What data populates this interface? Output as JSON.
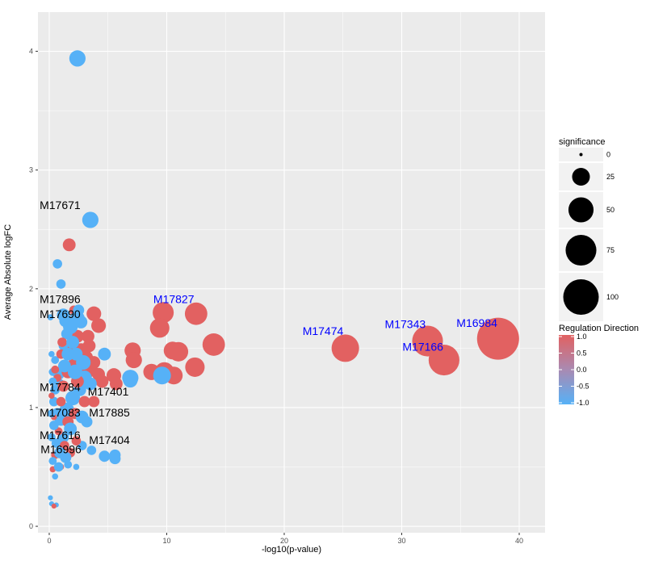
{
  "chart_data": {
    "type": "scatter",
    "title": "",
    "xlabel": "-log10(p-value)",
    "ylabel": "Average Absolute logFC",
    "xlim": [
      -0.96,
      42.2
    ],
    "ylim": [
      -0.054,
      4.33
    ],
    "x_ticks": [
      0,
      10,
      20,
      30,
      40
    ],
    "y_ticks": [
      0,
      1,
      2,
      3,
      4
    ],
    "grid": true,
    "colors": {
      "up": "#E26161",
      "down": "#56B1F7",
      "panel": "#EBEBEB",
      "grid": "#FFFFFF",
      "legend_key": "#F2F2F2"
    },
    "point_fields": [
      "x",
      "y",
      "significance",
      "direction"
    ],
    "points": [
      [
        0.2,
        1.45,
        3,
        -1
      ],
      [
        0.5,
        1.4,
        5,
        -1
      ],
      [
        0.3,
        1.3,
        5,
        -1
      ],
      [
        0.8,
        1.28,
        10,
        -1
      ],
      [
        1.2,
        1.78,
        13,
        -1
      ],
      [
        1.4,
        1.73,
        13,
        -1
      ],
      [
        2.1,
        1.82,
        7,
        1
      ],
      [
        2.4,
        1.6,
        13,
        1
      ],
      [
        1.8,
        1.5,
        13,
        1
      ],
      [
        1.8,
        1.68,
        17,
        -1
      ],
      [
        2.4,
        1.75,
        17,
        -1
      ],
      [
        2.7,
        1.72,
        13,
        -1
      ],
      [
        2.5,
        1.82,
        10,
        -1
      ],
      [
        1.5,
        1.62,
        10,
        -1
      ],
      [
        1.2,
        1.52,
        7,
        -1
      ],
      [
        2.7,
        1.48,
        17,
        1
      ],
      [
        3.1,
        1.42,
        17,
        1
      ],
      [
        2.2,
        1.38,
        13,
        1
      ],
      [
        1.0,
        1.45,
        7,
        1
      ],
      [
        1.6,
        1.45,
        13,
        -1
      ],
      [
        2.3,
        1.45,
        13,
        -1
      ],
      [
        0.9,
        1.2,
        7,
        -1
      ],
      [
        0.5,
        1.15,
        7,
        -1
      ],
      [
        0.4,
        1.05,
        7,
        -1
      ],
      [
        1.6,
        1.3,
        13,
        1
      ],
      [
        2.6,
        1.3,
        17,
        1
      ],
      [
        3.5,
        1.32,
        17,
        1
      ],
      [
        4.2,
        1.28,
        13,
        1
      ],
      [
        3.8,
        1.38,
        13,
        1
      ],
      [
        4.5,
        1.22,
        13,
        1
      ],
      [
        0.7,
        0.95,
        10,
        -1
      ],
      [
        1.0,
        0.9,
        13,
        -1
      ],
      [
        1.5,
        0.98,
        17,
        -1
      ],
      [
        2.0,
        1.08,
        17,
        -1
      ],
      [
        2.6,
        1.15,
        13,
        -1
      ],
      [
        3.0,
        1.25,
        17,
        -1
      ],
      [
        1.2,
        1.18,
        10,
        1
      ],
      [
        2.4,
        1.22,
        13,
        1
      ],
      [
        1.0,
        1.05,
        7,
        1
      ],
      [
        1.6,
        0.88,
        10,
        1
      ],
      [
        2.2,
        0.95,
        10,
        1
      ],
      [
        3.5,
        1.2,
        13,
        -1
      ],
      [
        2.8,
        0.92,
        13,
        -1
      ],
      [
        3.2,
        0.88,
        10,
        -1
      ],
      [
        1.8,
        0.82,
        13,
        -1
      ],
      [
        1.2,
        0.75,
        10,
        -1
      ],
      [
        0.6,
        0.7,
        7,
        -1
      ],
      [
        0.8,
        0.8,
        5,
        1
      ],
      [
        1.3,
        0.68,
        7,
        1
      ],
      [
        1.8,
        0.62,
        7,
        1
      ],
      [
        0.5,
        0.6,
        5,
        1
      ],
      [
        0.3,
        0.48,
        3,
        1
      ],
      [
        1.0,
        0.5,
        3,
        1
      ],
      [
        0.9,
        0.62,
        10,
        -1
      ],
      [
        1.4,
        0.58,
        10,
        -1
      ],
      [
        0.3,
        0.55,
        5,
        -1
      ],
      [
        0.8,
        0.5,
        7,
        -1
      ],
      [
        1.6,
        0.52,
        5,
        -1
      ],
      [
        2.3,
        0.5,
        3,
        -1
      ],
      [
        0.5,
        0.42,
        3,
        -1
      ],
      [
        2.8,
        0.68,
        7,
        -1
      ],
      [
        2.2,
        1.3,
        17,
        -1
      ],
      [
        1.3,
        1.35,
        13,
        -1
      ],
      [
        0.4,
        0.85,
        7,
        -1
      ],
      [
        0.2,
        0.75,
        5,
        -1
      ],
      [
        0.7,
        1.25,
        5,
        1
      ],
      [
        0.5,
        1.32,
        5,
        1
      ],
      [
        3.0,
        1.05,
        10,
        1
      ],
      [
        2.3,
        0.72,
        7,
        1
      ],
      [
        1.1,
        1.55,
        7,
        1
      ],
      [
        3.4,
        1.52,
        13,
        1
      ],
      [
        0.2,
        1.1,
        3,
        1
      ],
      [
        0.4,
        0.92,
        3,
        1
      ],
      [
        0.2,
        0.95,
        5,
        -1
      ],
      [
        0.3,
        1.22,
        5,
        -1
      ],
      [
        2.0,
        1.55,
        13,
        -1
      ],
      [
        2.9,
        1.38,
        17,
        -1
      ],
      [
        4.2,
        1.69,
        17,
        1
      ],
      [
        3.8,
        1.79,
        17,
        1
      ],
      [
        3.8,
        1.05,
        10,
        1
      ],
      [
        3.3,
        1.6,
        13,
        1
      ],
      [
        4.7,
        1.45,
        13,
        -1
      ],
      [
        4.7,
        0.59,
        10,
        -1
      ],
      [
        5.6,
        0.6,
        10,
        -1
      ],
      [
        5.6,
        0.57,
        10,
        -1
      ],
      [
        3.6,
        0.64,
        7,
        -1
      ],
      [
        0.1,
        0.24,
        2,
        -1
      ],
      [
        0.2,
        0.19,
        2,
        -1
      ],
      [
        0.6,
        0.18,
        2,
        -1
      ],
      [
        0.4,
        0.17,
        2,
        1
      ],
      [
        2.4,
        3.94,
        21,
        -1
      ],
      [
        3.5,
        2.58,
        21,
        -1
      ],
      [
        1.7,
        2.37,
        13,
        1
      ],
      [
        0.7,
        2.21,
        7,
        -1
      ],
      [
        1.0,
        2.04,
        7,
        -1
      ],
      [
        0.1,
        1.76,
        3,
        -1
      ],
      [
        9.7,
        1.8,
        35,
        1
      ],
      [
        12.5,
        1.79,
        40,
        1
      ],
      [
        9.4,
        1.67,
        30,
        1
      ],
      [
        14.0,
        1.53,
        40,
        1
      ],
      [
        7.1,
        1.48,
        21,
        1
      ],
      [
        10.5,
        1.48,
        25,
        1
      ],
      [
        11.0,
        1.47,
        30,
        1
      ],
      [
        7.2,
        1.4,
        21,
        1
      ],
      [
        12.4,
        1.34,
        30,
        1
      ],
      [
        9.8,
        1.3,
        30,
        1
      ],
      [
        8.7,
        1.3,
        21,
        1
      ],
      [
        10.6,
        1.27,
        25,
        1
      ],
      [
        5.7,
        1.2,
        13,
        1
      ],
      [
        5.5,
        1.27,
        17,
        1
      ],
      [
        9.6,
        1.27,
        25,
        -1
      ],
      [
        6.9,
        1.25,
        21,
        -1
      ],
      [
        6.9,
        1.23,
        17,
        -1
      ],
      [
        25.2,
        1.5,
        60,
        1
      ],
      [
        32.2,
        1.56,
        75,
        1
      ],
      [
        33.6,
        1.4,
        75,
        1
      ],
      [
        38.2,
        1.58,
        140,
        1
      ]
    ],
    "labels": [
      {
        "text": "M17671",
        "x": 0.7,
        "y": 2.67,
        "color": "#000000"
      },
      {
        "text": "M17896",
        "x": 0.2,
        "y": 1.88,
        "color": "#000000"
      },
      {
        "text": "M17690",
        "x": 0.0,
        "y": 1.87,
        "color": "#000000"
      },
      {
        "text": "M17827",
        "x": 10.6,
        "y": 1.88,
        "color": "#0000FF"
      },
      {
        "text": "M17474",
        "x": 23.3,
        "y": 1.61,
        "color": "#0000FF"
      },
      {
        "text": "M17343",
        "x": 30.3,
        "y": 1.67,
        "color": "#0000FF"
      },
      {
        "text": "M17166",
        "x": 31.8,
        "y": 1.48,
        "color": "#0000FF"
      },
      {
        "text": "M16984",
        "x": 36.4,
        "y": 1.68,
        "color": "#0000FF"
      },
      {
        "text": "M17784",
        "x": 0.6,
        "y": 1.14,
        "color": "#000000"
      },
      {
        "text": "M17401",
        "x": 0.9,
        "y": 1.1,
        "color": "#000000"
      },
      {
        "text": "M17083",
        "x": 0.1,
        "y": 1.04,
        "color": "#000000"
      },
      {
        "text": "M17885",
        "x": 1.0,
        "y": 1.04,
        "color": "#000000"
      },
      {
        "text": "M17616",
        "x": 0.4,
        "y": 0.85,
        "color": "#000000"
      },
      {
        "text": "M17404",
        "x": 1.0,
        "y": 0.81,
        "color": "#000000"
      },
      {
        "text": "M16996",
        "x": 1.0,
        "y": 0.73,
        "color": "#000000"
      }
    ],
    "legend_size": {
      "title": "significance",
      "values": [
        0,
        25,
        50,
        75,
        100
      ],
      "placement": "right"
    },
    "legend_color": {
      "title": "Regulation Direction",
      "ticks": [
        "1.0",
        "0.5",
        "0.0",
        "-0.5",
        "-1.0"
      ],
      "range": [
        -1,
        1
      ],
      "placement": "right"
    }
  }
}
